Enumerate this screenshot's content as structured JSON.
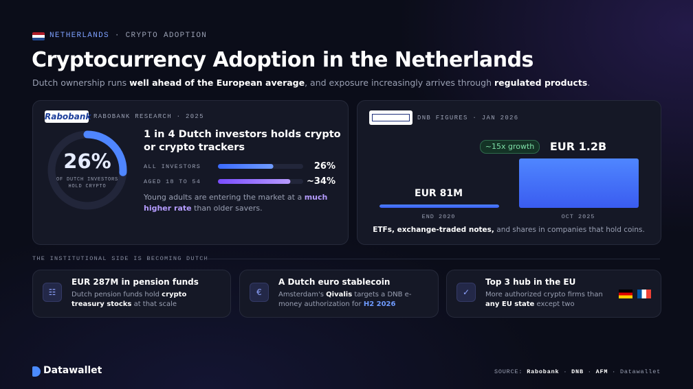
{
  "header": {
    "tag": [
      "NETHERLANDS",
      "·",
      "CRYPTO ADOPTION"
    ],
    "title": "Cryptocurrency Adoption in the Netherlands",
    "subtitle": [
      "Dutch ownership runs ",
      "well ahead of the European average",
      ", and exposure increasingly arrives through ",
      "regulated products",
      "."
    ]
  },
  "research_card": {
    "logo": "Rabobank",
    "source": "RABOBANK RESEARCH · 2025",
    "ring": {
      "value": 26,
      "label": "26%",
      "caption": "OF DUTCH INVESTORS HOLD CRYPTO"
    },
    "headline": "1 in 4 Dutch investors holds crypto or crypto trackers",
    "rows": [
      {
        "label": "ALL INVESTORS",
        "value": 26,
        "value_label": "26%"
      },
      {
        "label": "AGED 18 TO 54",
        "value": 34,
        "value_label": "~34%"
      }
    ],
    "note": [
      "Young adults are entering the market at a ",
      "much higher rate",
      " than older savers."
    ]
  },
  "dnb_card": {
    "source": "DNB FIGURES · JAN 2026",
    "badge": "~15x growth",
    "bars": [
      {
        "label": "END 2020",
        "value": 81,
        "value_label": "EUR 81M"
      },
      {
        "label": "OCT 2025",
        "value": 1200,
        "value_label": "EUR 1.2B"
      }
    ],
    "caption": [
      "ETFs, exchange-traded notes,",
      " and shares in companies that hold coins."
    ]
  },
  "section_label": "THE INSTITUTIONAL SIDE IS BECOMING DUTCH",
  "facts": [
    {
      "title": "EUR 287M in pension funds",
      "text": [
        "Dutch pension funds hold ",
        "crypto treasury stocks",
        " at that scale"
      ]
    },
    {
      "title": "A Dutch euro stablecoin",
      "text": [
        "Amsterdam's ",
        "Qivalis",
        " targets a DNB e-money authorization for ",
        "H2 2026"
      ]
    },
    {
      "title": "Top 3 hub in the EU",
      "text": [
        "More authorized crypto firms than ",
        "any EU state",
        " except two"
      ]
    }
  ],
  "footer": {
    "brand": "Datawallet",
    "sources": [
      "SOURCE:",
      "Rabobank",
      "·",
      "DNB",
      "·",
      "AFM",
      "·",
      "Datawallet"
    ]
  }
}
